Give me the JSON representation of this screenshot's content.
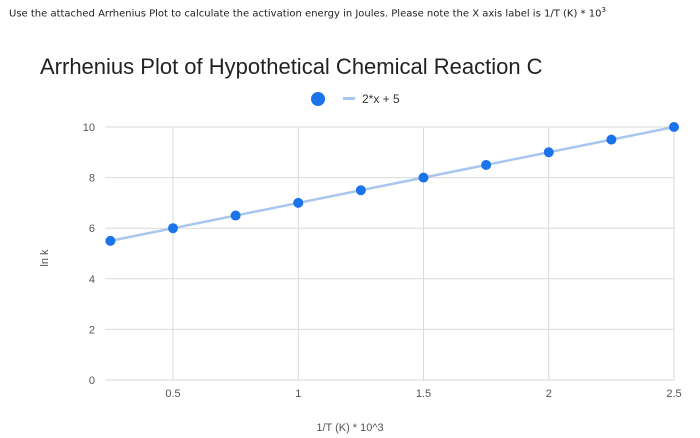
{
  "question": {
    "text": "Use the attached Arrhenius Plot to calculate the activation energy in Joules. Please note the X axis label is 1/T (K) * 10",
    "superscript": "3"
  },
  "chart_data": {
    "type": "scatter",
    "title": "Arrhenius Plot of Hypothetical Chemical Reaction C",
    "xlabel": "1/T (K) * 10^3",
    "ylabel": "ln k",
    "xlim": [
      0.3,
      2.5
    ],
    "ylim": [
      0,
      10
    ],
    "x_ticks": [
      "0.5",
      "1",
      "1.5",
      "2",
      "2.5"
    ],
    "y_ticks": [
      "0",
      "2",
      "4",
      "6",
      "8",
      "10"
    ],
    "grid": true,
    "legend_position": "top",
    "legend_label": "2*x + 5",
    "series": [
      {
        "x": [
          0.25,
          0.5,
          0.75,
          1.0,
          1.25,
          1.5,
          1.75,
          2.0,
          2.25,
          2.5
        ],
        "y": [
          5.5,
          6.0,
          6.5,
          7.0,
          7.5,
          8.0,
          8.5,
          9.0,
          9.5,
          10.0
        ]
      }
    ],
    "trendline": {
      "slope": 2,
      "intercept": 5
    },
    "colors": {
      "marker": "#1a73e8",
      "trendline": "#a8c7ee",
      "grid": "#d9d9d9"
    }
  }
}
